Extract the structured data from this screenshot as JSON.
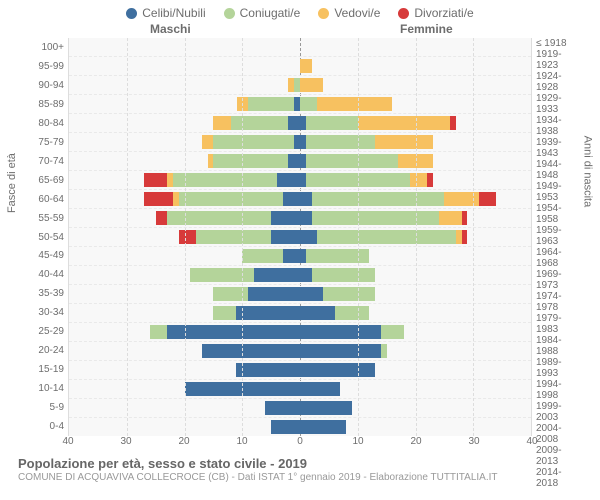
{
  "legend": [
    {
      "label": "Celibi/Nubili",
      "color": "#3f6f9f"
    },
    {
      "label": "Coniugati/e",
      "color": "#b4d49a"
    },
    {
      "label": "Vedovi/e",
      "color": "#f7c160"
    },
    {
      "label": "Divorziati/e",
      "color": "#d73a3a"
    }
  ],
  "gender": {
    "male": "Maschi",
    "female": "Femmine"
  },
  "axis_left_title": "Fasce di età",
  "axis_right_title": "Anni di nascita",
  "x_max": 40,
  "x_ticks": [
    40,
    30,
    20,
    10,
    0,
    10,
    20,
    30,
    40
  ],
  "grid_color": "#dddddd",
  "bg_color": "#f8f8f8",
  "bar_fill_ratio": 0.8,
  "rows": [
    {
      "age": "100+",
      "birth": "≤ 1918",
      "m": {
        "c": 0,
        "co": 0,
        "v": 0,
        "d": 0
      },
      "f": {
        "c": 0,
        "co": 0,
        "v": 0,
        "d": 0
      }
    },
    {
      "age": "95-99",
      "birth": "1919-1923",
      "m": {
        "c": 0,
        "co": 0,
        "v": 0,
        "d": 0
      },
      "f": {
        "c": 0,
        "co": 0,
        "v": 2,
        "d": 0
      }
    },
    {
      "age": "90-94",
      "birth": "1924-1928",
      "m": {
        "c": 0,
        "co": 1,
        "v": 1,
        "d": 0
      },
      "f": {
        "c": 0,
        "co": 0,
        "v": 4,
        "d": 0
      }
    },
    {
      "age": "85-89",
      "birth": "1929-1933",
      "m": {
        "c": 1,
        "co": 8,
        "v": 2,
        "d": 0
      },
      "f": {
        "c": 0,
        "co": 3,
        "v": 13,
        "d": 0
      }
    },
    {
      "age": "80-84",
      "birth": "1934-1938",
      "m": {
        "c": 2,
        "co": 10,
        "v": 3,
        "d": 0
      },
      "f": {
        "c": 1,
        "co": 9,
        "v": 16,
        "d": 1
      }
    },
    {
      "age": "75-79",
      "birth": "1939-1943",
      "m": {
        "c": 1,
        "co": 14,
        "v": 2,
        "d": 0
      },
      "f": {
        "c": 1,
        "co": 12,
        "v": 10,
        "d": 0
      }
    },
    {
      "age": "70-74",
      "birth": "1944-1948",
      "m": {
        "c": 2,
        "co": 13,
        "v": 1,
        "d": 0
      },
      "f": {
        "c": 1,
        "co": 16,
        "v": 6,
        "d": 0
      }
    },
    {
      "age": "65-69",
      "birth": "1949-1953",
      "m": {
        "c": 4,
        "co": 18,
        "v": 1,
        "d": 4
      },
      "f": {
        "c": 1,
        "co": 18,
        "v": 3,
        "d": 1
      }
    },
    {
      "age": "60-64",
      "birth": "1954-1958",
      "m": {
        "c": 3,
        "co": 18,
        "v": 1,
        "d": 5
      },
      "f": {
        "c": 2,
        "co": 23,
        "v": 6,
        "d": 3
      }
    },
    {
      "age": "55-59",
      "birth": "1959-1963",
      "m": {
        "c": 5,
        "co": 18,
        "v": 0,
        "d": 2
      },
      "f": {
        "c": 2,
        "co": 22,
        "v": 4,
        "d": 1
      }
    },
    {
      "age": "50-54",
      "birth": "1964-1968",
      "m": {
        "c": 5,
        "co": 13,
        "v": 0,
        "d": 3
      },
      "f": {
        "c": 3,
        "co": 24,
        "v": 1,
        "d": 1
      }
    },
    {
      "age": "45-49",
      "birth": "1969-1973",
      "m": {
        "c": 3,
        "co": 7,
        "v": 0,
        "d": 0
      },
      "f": {
        "c": 1,
        "co": 11,
        "v": 0,
        "d": 0
      }
    },
    {
      "age": "40-44",
      "birth": "1974-1978",
      "m": {
        "c": 8,
        "co": 11,
        "v": 0,
        "d": 0
      },
      "f": {
        "c": 2,
        "co": 11,
        "v": 0,
        "d": 0
      }
    },
    {
      "age": "35-39",
      "birth": "1979-1983",
      "m": {
        "c": 9,
        "co": 6,
        "v": 0,
        "d": 0
      },
      "f": {
        "c": 4,
        "co": 9,
        "v": 0,
        "d": 0
      }
    },
    {
      "age": "30-34",
      "birth": "1984-1988",
      "m": {
        "c": 11,
        "co": 4,
        "v": 0,
        "d": 0
      },
      "f": {
        "c": 6,
        "co": 6,
        "v": 0,
        "d": 0
      }
    },
    {
      "age": "25-29",
      "birth": "1989-1993",
      "m": {
        "c": 23,
        "co": 3,
        "v": 0,
        "d": 0
      },
      "f": {
        "c": 14,
        "co": 4,
        "v": 0,
        "d": 0
      }
    },
    {
      "age": "20-24",
      "birth": "1994-1998",
      "m": {
        "c": 17,
        "co": 0,
        "v": 0,
        "d": 0
      },
      "f": {
        "c": 14,
        "co": 1,
        "v": 0,
        "d": 0
      }
    },
    {
      "age": "15-19",
      "birth": "1999-2003",
      "m": {
        "c": 11,
        "co": 0,
        "v": 0,
        "d": 0
      },
      "f": {
        "c": 13,
        "co": 0,
        "v": 0,
        "d": 0
      }
    },
    {
      "age": "10-14",
      "birth": "2004-2008",
      "m": {
        "c": 20,
        "co": 0,
        "v": 0,
        "d": 0
      },
      "f": {
        "c": 7,
        "co": 0,
        "v": 0,
        "d": 0
      }
    },
    {
      "age": "5-9",
      "birth": "2009-2013",
      "m": {
        "c": 6,
        "co": 0,
        "v": 0,
        "d": 0
      },
      "f": {
        "c": 9,
        "co": 0,
        "v": 0,
        "d": 0
      }
    },
    {
      "age": "0-4",
      "birth": "2014-2018",
      "m": {
        "c": 5,
        "co": 0,
        "v": 0,
        "d": 0
      },
      "f": {
        "c": 8,
        "co": 0,
        "v": 0,
        "d": 0
      }
    }
  ],
  "series_keys": [
    "c",
    "co",
    "v",
    "d"
  ],
  "title": "Popolazione per età, sesso e stato civile - 2019",
  "subtitle": "COMUNE DI ACQUAVIVA COLLECROCE (CB) - Dati ISTAT 1° gennaio 2019 - Elaborazione TUTTITALIA.IT"
}
